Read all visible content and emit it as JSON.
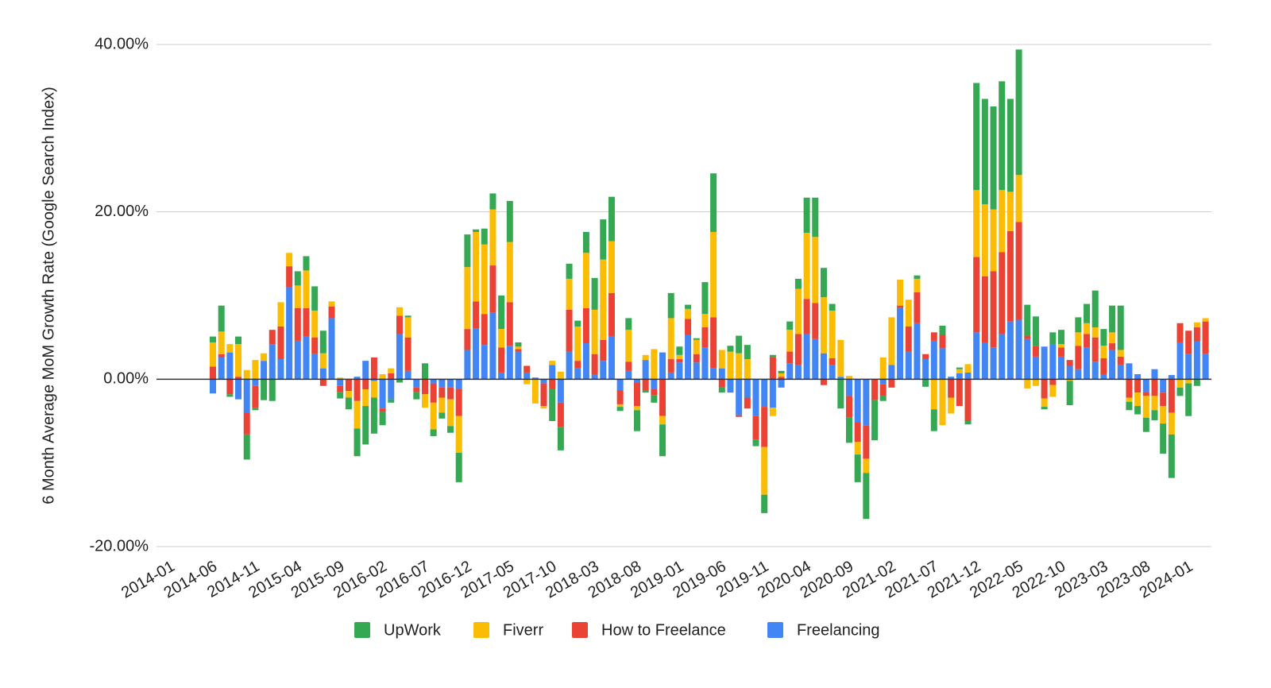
{
  "chart_data": {
    "type": "bar",
    "stacked": true,
    "ylabel": "6 Month Average MoM Growth Rate (Google Search Index)",
    "ylim": [
      -20,
      40
    ],
    "yticks": [
      {
        "value": -20,
        "label": "-20.00%"
      },
      {
        "value": 0,
        "label": "0.00%"
      },
      {
        "value": 20,
        "label": "20.00%"
      },
      {
        "value": 40,
        "label": "40.00%"
      }
    ],
    "grid": true,
    "legend": "bottom",
    "categories": [
      "2014-01",
      null,
      null,
      null,
      null,
      "2014-06",
      null,
      null,
      null,
      null,
      "2014-11",
      null,
      null,
      null,
      null,
      "2015-04",
      null,
      null,
      null,
      null,
      "2015-09",
      null,
      null,
      null,
      null,
      "2016-02",
      null,
      null,
      null,
      null,
      "2016-07",
      null,
      null,
      null,
      null,
      "2016-12",
      null,
      null,
      null,
      null,
      "2017-05",
      null,
      null,
      null,
      null,
      "2017-10",
      null,
      null,
      null,
      null,
      "2018-03",
      null,
      null,
      null,
      null,
      "2018-08",
      null,
      null,
      null,
      null,
      "2019-01",
      null,
      null,
      null,
      null,
      "2019-06",
      null,
      null,
      null,
      null,
      "2019-11",
      null,
      null,
      null,
      null,
      "2020-04",
      null,
      null,
      null,
      null,
      "2020-09",
      null,
      null,
      null,
      null,
      "2021-02",
      null,
      null,
      null,
      null,
      "2021-07",
      null,
      null,
      null,
      null,
      "2021-12",
      null,
      null,
      null,
      null,
      "2022-05",
      null,
      null,
      null,
      null,
      "2022-10",
      null,
      null,
      null,
      null,
      "2023-03",
      null,
      null,
      null,
      null,
      "2023-08",
      null,
      null,
      null,
      null,
      "2024-01",
      null,
      null
    ],
    "series": [
      {
        "name": "UpWork",
        "color": "#34a853",
        "values": [
          null,
          null,
          null,
          null,
          null,
          0.7,
          3.1,
          -0.3,
          0.9,
          -3.0,
          -0.3,
          -2.5,
          -2.6,
          0,
          0,
          1.7,
          1.7,
          2.9,
          2.7,
          0,
          -0.8,
          -1.4,
          -3.3,
          -4.6,
          -4.3,
          -1.6,
          -0.4,
          -0.4,
          0.2,
          -0.9,
          1.9,
          -0.8,
          -0.7,
          -0.8,
          -3.5,
          3.9,
          0.3,
          1.9,
          1.9,
          4.0,
          4.9,
          0.5,
          0,
          0,
          0,
          -3.8,
          -2.8,
          1.8,
          0.7,
          2.5,
          3.8,
          4.8,
          5.3,
          -0.5,
          1.4,
          -2.5,
          -0.3,
          -0.9,
          -3.8,
          3.0,
          1.0,
          0.5,
          0.2,
          3.8,
          7.0,
          -0.6,
          0.7,
          2.1,
          1.7,
          -0.8,
          -2.2,
          0.3,
          0.3,
          1.0,
          1.2,
          4.2,
          4.7,
          3.5,
          0.8,
          -3.5,
          -3.0,
          -3.3,
          -5.5,
          -4.8,
          -0.6,
          0,
          0,
          0,
          0.4,
          -0.9,
          -2.6,
          1.1,
          0,
          0.2,
          -0.4,
          12.8,
          12.6,
          12.3,
          13.0,
          11.1,
          15.0,
          3.7,
          3.5,
          -0.3,
          1.4,
          1.7,
          -2.9,
          1.8,
          2.3,
          4.4,
          2.0,
          3.2,
          5.3,
          -1.0,
          -1.0,
          -1.7,
          -1.2,
          -3.6,
          -5.2,
          -1.0,
          -3.9,
          -0.8,
          0
        ]
      },
      {
        "name": "Fiverr",
        "color": "#fbbc04",
        "values": [
          null,
          null,
          null,
          null,
          null,
          2.9,
          2.7,
          1.0,
          3.9,
          1.1,
          2.3,
          0.9,
          0,
          2.9,
          1.6,
          2.7,
          4.5,
          3.2,
          1.8,
          0.6,
          0.2,
          -0.8,
          -3.3,
          -2.0,
          -2.0,
          0.6,
          0.6,
          1.0,
          2.4,
          0,
          -1.6,
          -3.2,
          -1.8,
          -3.2,
          -4.4,
          7.4,
          8.3,
          8.3,
          6.7,
          2.2,
          7.2,
          0.3,
          -0.6,
          -2.9,
          -0.3,
          0.5,
          0.9,
          3.7,
          4.1,
          6.6,
          5.3,
          9.6,
          6.2,
          -0.3,
          3.8,
          -0.5,
          0.6,
          3.6,
          -1.0,
          4.9,
          0.5,
          1.2,
          1.7,
          1.6,
          10.2,
          2.2,
          3.3,
          3.1,
          2.4,
          0,
          -5.7,
          -1.0,
          0.4,
          2.6,
          5.4,
          7.9,
          7.9,
          6.7,
          5.7,
          4.4,
          0.4,
          -1.5,
          -1.7,
          0,
          2.6,
          5.7,
          3.1,
          3.2,
          1.6,
          0,
          -3.6,
          -5.5,
          -1.9,
          0.5,
          1.0,
          8.0,
          8.6,
          7.4,
          7.4,
          4.7,
          5.6,
          -1.1,
          -0.8,
          -1.0,
          -1.4,
          0.4,
          -0.2,
          1.6,
          1.3,
          1.2,
          1.5,
          1.3,
          0.8,
          -0.5,
          -1.6,
          -2.6,
          -1.7,
          -2.1,
          -2.6,
          -1.0,
          -0.5,
          0.6,
          0.4
        ]
      },
      {
        "name": "How to Freelance",
        "color": "#ea4335",
        "values": [
          null,
          null,
          null,
          null,
          null,
          1.5,
          0.4,
          -1.8,
          0.3,
          -2.6,
          -2.6,
          0,
          1.7,
          3.9,
          2.5,
          3.9,
          3.4,
          2.0,
          -0.8,
          1.4,
          -0.7,
          -1.4,
          -2.6,
          -1.2,
          2.6,
          -0.4,
          0.7,
          2.2,
          4.0,
          -0.5,
          -1.8,
          -2.3,
          -1.2,
          -1.4,
          -3.2,
          2.5,
          3.2,
          3.7,
          5.6,
          3.0,
          5.2,
          0.3,
          0.8,
          0,
          -2.7,
          -1.2,
          -2.9,
          5.0,
          0.9,
          4.2,
          2.4,
          2.5,
          5.2,
          -1.7,
          1.1,
          -2.8,
          -1.3,
          -0.7,
          -4.4,
          1.6,
          0.4,
          1.9,
          1.0,
          2.4,
          6.1,
          -1.0,
          0,
          -0.2,
          -1.3,
          -2.8,
          -4.8,
          2.6,
          0.3,
          1.4,
          3.7,
          4.2,
          4.3,
          -0.7,
          0.8,
          0,
          -2.6,
          -2.4,
          -4.0,
          -2.5,
          -1.4,
          -1.0,
          0.3,
          3.0,
          3.7,
          0.6,
          1.0,
          1.6,
          -2.2,
          -3.2,
          -5.0,
          9.0,
          7.9,
          9.1,
          9.8,
          10.8,
          11.7,
          0.4,
          1.3,
          -2.3,
          -0.7,
          1.1,
          0.7,
          2.8,
          1.6,
          2.9,
          1.9,
          0.8,
          1.0,
          -2.2,
          -1.6,
          -0.5,
          -2.0,
          -1.6,
          -4.0,
          2.3,
          2.8,
          1.7,
          3.9
        ]
      },
      {
        "name": "Freelancing",
        "color": "#4285f4",
        "values": [
          null,
          null,
          null,
          null,
          null,
          -1.7,
          2.6,
          3.2,
          -2.4,
          -4.0,
          -0.8,
          2.2,
          4.2,
          2.4,
          11.0,
          4.6,
          5.1,
          3.0,
          1.3,
          7.3,
          -0.8,
          0,
          0.3,
          2.2,
          -0.2,
          -3.5,
          -2.4,
          5.4,
          1.0,
          -1.0,
          0,
          -0.5,
          -1.0,
          -1.0,
          -1.2,
          3.5,
          6.1,
          4.1,
          8.0,
          0.8,
          4.0,
          3.3,
          0.8,
          0.2,
          -0.5,
          1.7,
          -2.8,
          3.3,
          1.3,
          4.3,
          0.6,
          2.2,
          5.1,
          -1.3,
          1.0,
          -0.4,
          2.3,
          -1.2,
          3.2,
          0.8,
          2.0,
          5.3,
          2.0,
          3.8,
          1.3,
          1.3,
          -1.6,
          -4.3,
          -2.2,
          -4.4,
          -3.3,
          -3.4,
          -1.0,
          1.9,
          1.7,
          5.4,
          4.8,
          3.1,
          1.7,
          0.3,
          -2.0,
          -5.1,
          -5.5,
          0,
          -0.6,
          1.7,
          8.5,
          3.3,
          6.7,
          2.4,
          4.6,
          3.7,
          0.3,
          0.7,
          0.8,
          5.6,
          4.4,
          3.8,
          5.4,
          6.9,
          7.1,
          4.8,
          2.7,
          3.9,
          4.2,
          2.7,
          1.6,
          1.2,
          3.8,
          2.1,
          0.6,
          3.5,
          1.7,
          1.9,
          0.6,
          -1.5,
          1.2,
          -1.6,
          0.5,
          4.4,
          3.0,
          4.5,
          3.0
        ]
      }
    ]
  }
}
